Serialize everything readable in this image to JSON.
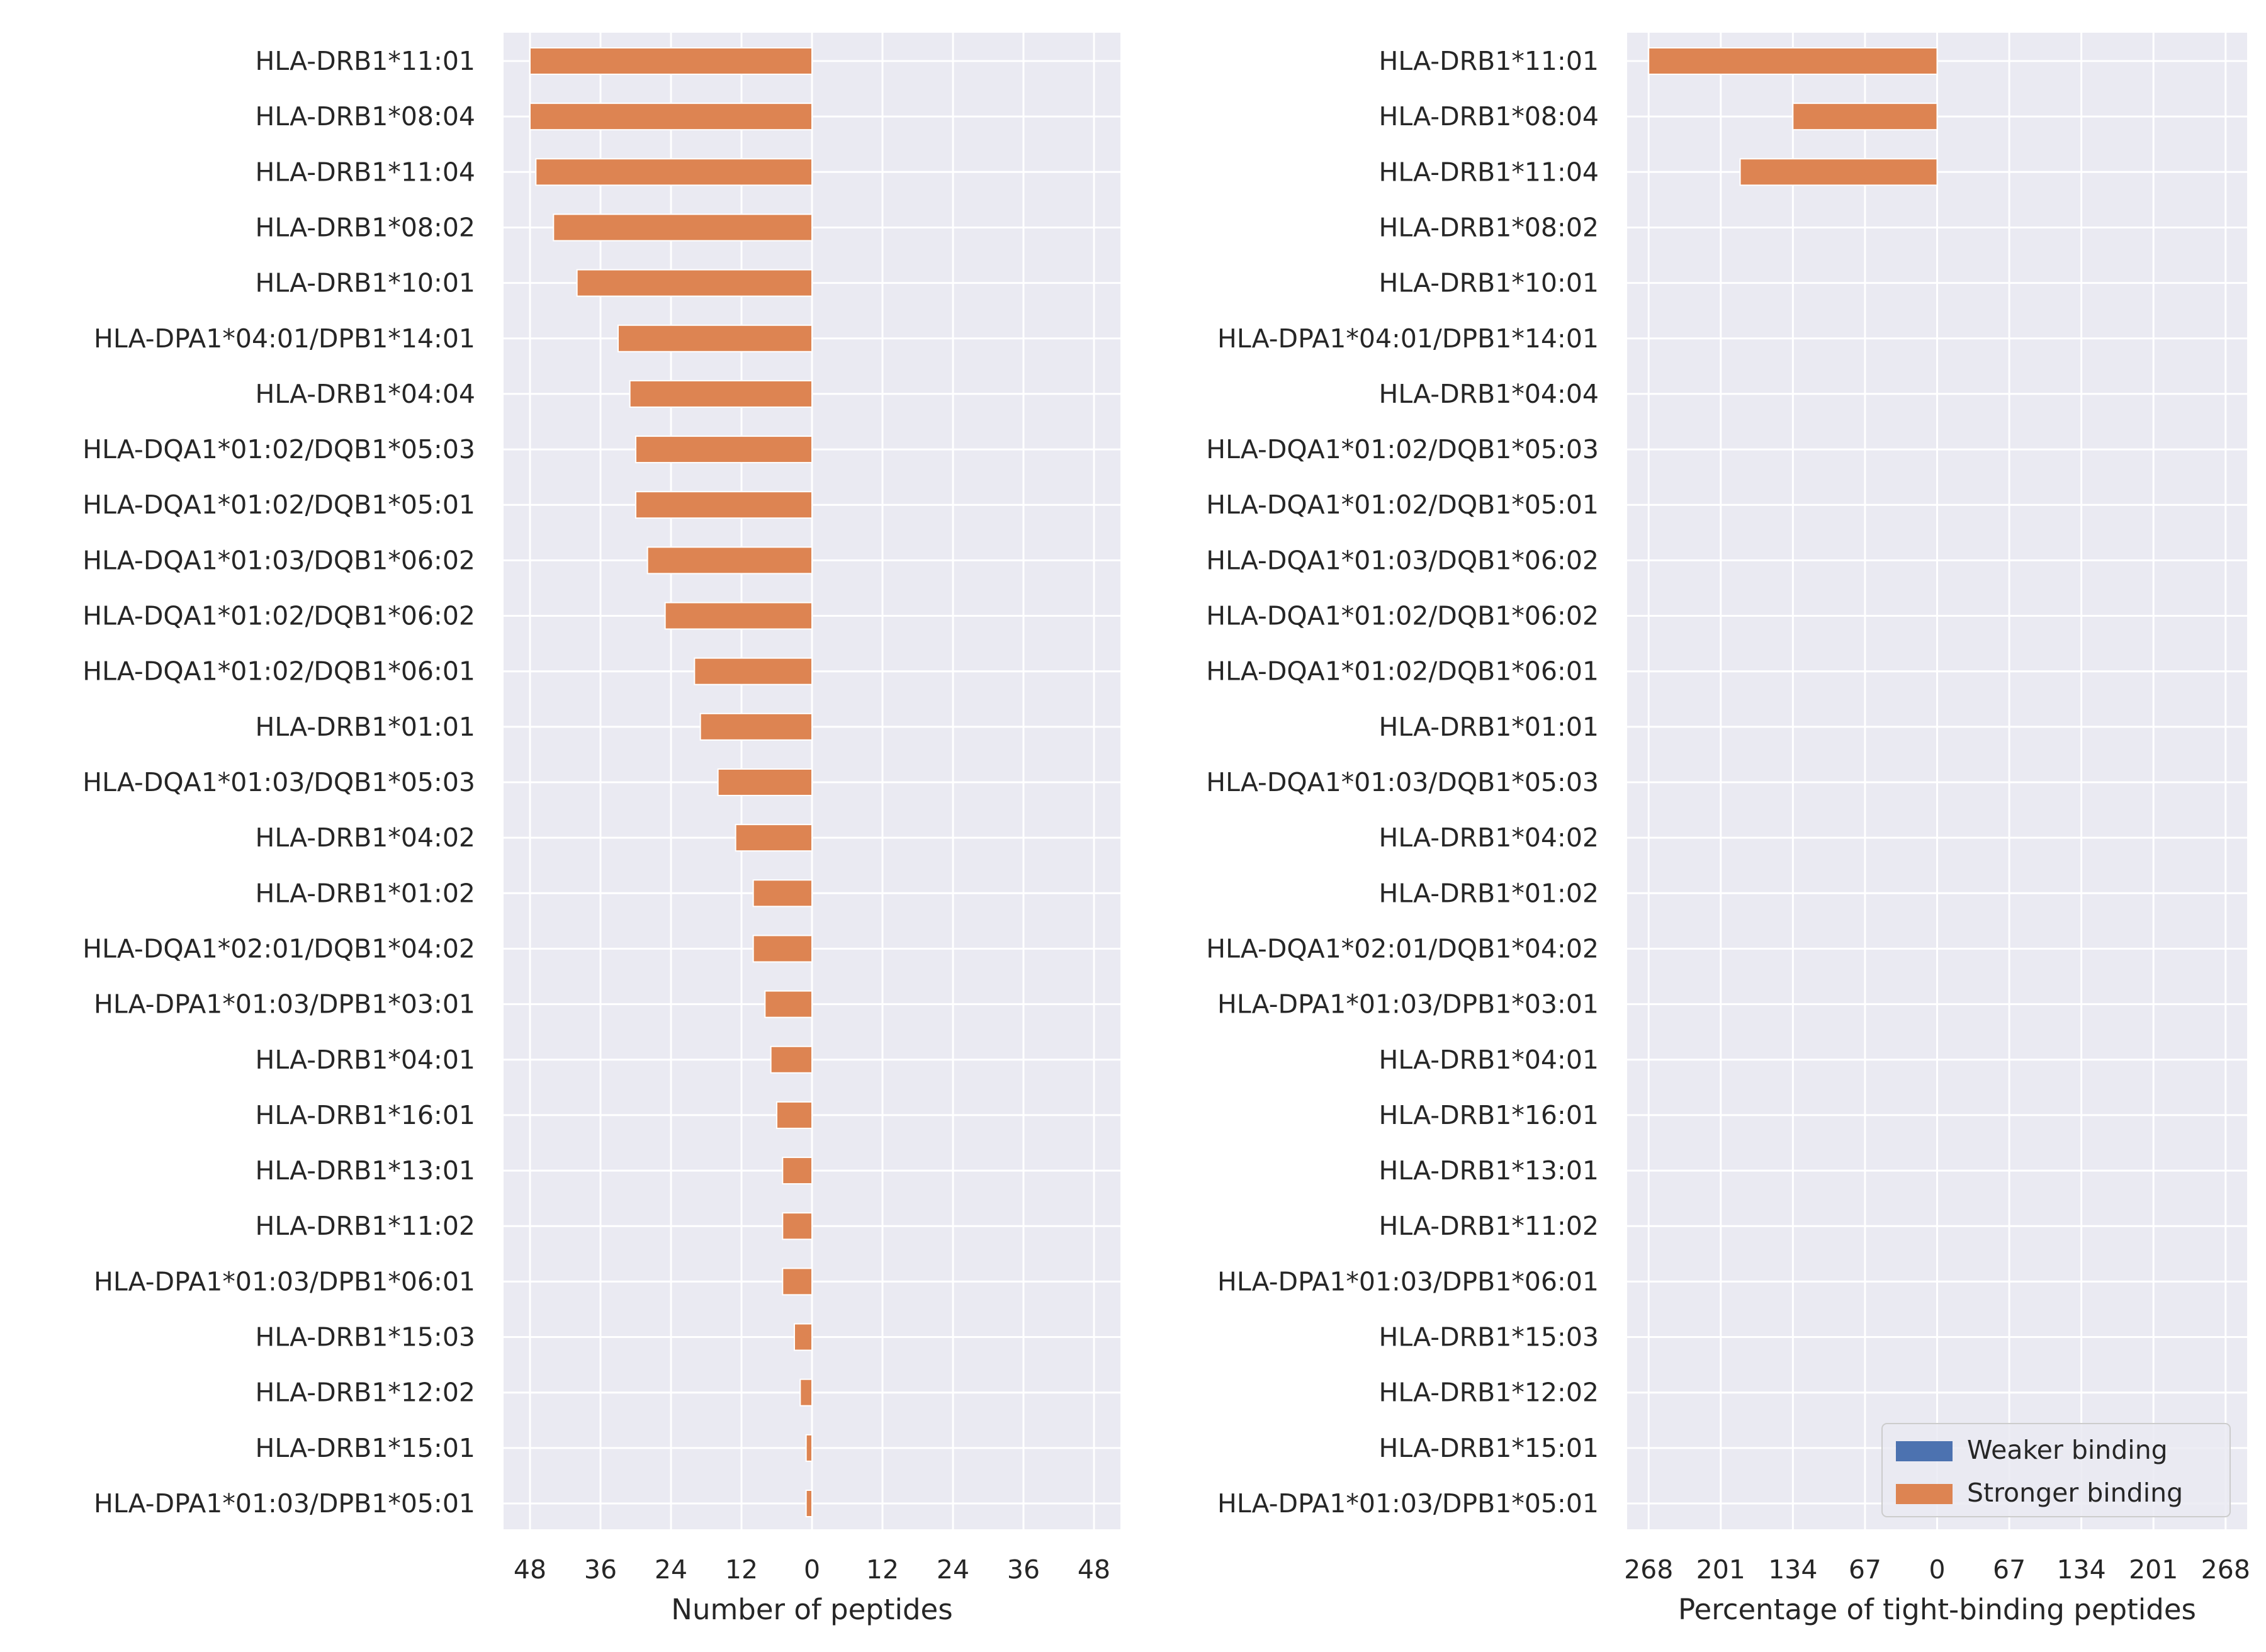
{
  "colors": {
    "background": "#eaeaf2",
    "grid": "#ffffff",
    "weaker": "#4c72b0",
    "stronger": "#dd8452",
    "text": "#262626"
  },
  "alleles": [
    "HLA-DRB1*11:01",
    "HLA-DRB1*08:04",
    "HLA-DRB1*11:04",
    "HLA-DRB1*08:02",
    "HLA-DRB1*10:01",
    "HLA-DPA1*04:01/DPB1*14:01",
    "HLA-DRB1*04:04",
    "HLA-DQA1*01:02/DQB1*05:03",
    "HLA-DQA1*01:02/DQB1*05:01",
    "HLA-DQA1*01:03/DQB1*06:02",
    "HLA-DQA1*01:02/DQB1*06:02",
    "HLA-DQA1*01:02/DQB1*06:01",
    "HLA-DRB1*01:01",
    "HLA-DQA1*01:03/DQB1*05:03",
    "HLA-DRB1*04:02",
    "HLA-DRB1*01:02",
    "HLA-DQA1*02:01/DQB1*04:02",
    "HLA-DPA1*01:03/DPB1*03:01",
    "HLA-DRB1*04:01",
    "HLA-DRB1*16:01",
    "HLA-DRB1*13:01",
    "HLA-DRB1*11:02",
    "HLA-DPA1*01:03/DPB1*06:01",
    "HLA-DRB1*15:03",
    "HLA-DRB1*12:02",
    "HLA-DRB1*15:01",
    "HLA-DPA1*01:03/DPB1*05:01"
  ],
  "chart_data": [
    {
      "type": "bar",
      "orientation": "horizontal-diverging",
      "xlabel": "Number of peptides",
      "xlim": [
        -52.5,
        52.5
      ],
      "xticks": [
        -48,
        -36,
        -24,
        -12,
        0,
        12,
        24,
        36,
        48
      ],
      "xtick_labels": [
        "48",
        "36",
        "24",
        "12",
        "0",
        "12",
        "24",
        "36",
        "48"
      ],
      "grid": true,
      "series": [
        {
          "name": "Stronger binding",
          "color": "#dd8452",
          "values": [
            48,
            48,
            47,
            44,
            40,
            33,
            31,
            30,
            30,
            28,
            25,
            20,
            19,
            16,
            13,
            10,
            10,
            8,
            7,
            6,
            5,
            5,
            5,
            3,
            2,
            1,
            1
          ]
        },
        {
          "name": "Weaker binding",
          "color": "#4c72b0",
          "values": [
            0,
            0,
            0,
            0,
            0,
            0,
            0,
            0,
            0,
            0,
            0,
            0,
            0,
            0,
            0,
            0,
            0,
            0,
            0,
            0,
            0,
            0,
            0,
            0,
            0,
            0,
            0
          ]
        }
      ]
    },
    {
      "type": "bar",
      "orientation": "horizontal-diverging",
      "xlabel": "Percentage of tight-binding peptides",
      "xlim": [
        -288,
        288
      ],
      "xticks": [
        -268,
        -201,
        -134,
        -67,
        0,
        67,
        134,
        201,
        268
      ],
      "xtick_labels": [
        "268",
        "201",
        "134",
        "67",
        "0",
        "67",
        "134",
        "201",
        "268"
      ],
      "grid": true,
      "legend": {
        "placement": "bottom-right",
        "entries": [
          "Weaker binding",
          "Stronger binding"
        ]
      },
      "series": [
        {
          "name": "Stronger binding",
          "color": "#dd8452",
          "values": [
            268,
            134,
            183,
            0,
            0,
            0,
            0,
            0,
            0,
            0,
            0,
            0,
            0,
            0,
            0,
            0,
            0,
            0,
            0,
            0,
            0,
            0,
            0,
            0,
            0,
            0,
            0
          ]
        },
        {
          "name": "Weaker binding",
          "color": "#4c72b0",
          "values": [
            0,
            0,
            0,
            0,
            0,
            0,
            0,
            0,
            0,
            0,
            0,
            0,
            0,
            0,
            0,
            0,
            0,
            0,
            0,
            0,
            0,
            0,
            0,
            0,
            0,
            0,
            0
          ]
        }
      ]
    }
  ]
}
